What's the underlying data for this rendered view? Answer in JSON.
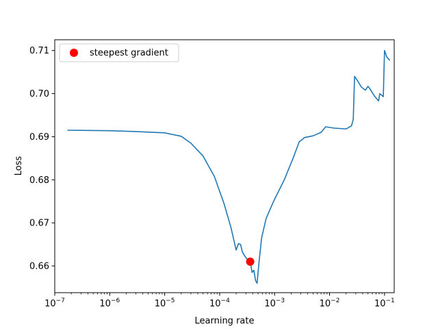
{
  "chart_data": {
    "type": "line",
    "xlabel": "Learning rate",
    "ylabel": "Loss",
    "xscale": "log",
    "xlim": [
      1e-07,
      0.15
    ],
    "ylim": [
      0.6538,
      0.7125
    ],
    "grid": false,
    "legend_position": "top-left",
    "x_ticks": [
      {
        "value": 1e-07,
        "base": "10",
        "exp": "−7"
      },
      {
        "value": 1e-06,
        "base": "10",
        "exp": "−6"
      },
      {
        "value": 1e-05,
        "base": "10",
        "exp": "−5"
      },
      {
        "value": 0.0001,
        "base": "10",
        "exp": "−4"
      },
      {
        "value": 0.001,
        "base": "10",
        "exp": "−3"
      },
      {
        "value": 0.01,
        "base": "10",
        "exp": "−2"
      },
      {
        "value": 0.1,
        "base": "10",
        "exp": "−1"
      }
    ],
    "y_ticks": [
      {
        "value": 0.66,
        "label": "0.66"
      },
      {
        "value": 0.67,
        "label": "0.67"
      },
      {
        "value": 0.68,
        "label": "0.68"
      },
      {
        "value": 0.69,
        "label": "0.69"
      },
      {
        "value": 0.7,
        "label": "0.70"
      },
      {
        "value": 0.71,
        "label": "0.71"
      }
    ],
    "series": [
      {
        "color": "#1f77b4",
        "points": [
          [
            1.7e-07,
            0.6915
          ],
          [
            1e-06,
            0.6914
          ],
          [
            3e-06,
            0.6912
          ],
          [
            1e-05,
            0.6909
          ],
          [
            2e-05,
            0.6901
          ],
          [
            3e-05,
            0.6885
          ],
          [
            5e-05,
            0.6855
          ],
          [
            8e-05,
            0.6808
          ],
          [
            0.00012,
            0.6745
          ],
          [
            0.00016,
            0.669
          ],
          [
            0.0002,
            0.6637
          ],
          [
            0.00022,
            0.6652
          ],
          [
            0.00024,
            0.665
          ],
          [
            0.00026,
            0.6632
          ],
          [
            0.00029,
            0.6622
          ],
          [
            0.00032,
            0.6615
          ],
          [
            0.00036,
            0.661
          ],
          [
            0.00039,
            0.6585
          ],
          [
            0.00042,
            0.659
          ],
          [
            0.00045,
            0.6566
          ],
          [
            0.00048,
            0.656
          ],
          [
            0.00052,
            0.6608
          ],
          [
            0.00058,
            0.6665
          ],
          [
            0.0007,
            0.671
          ],
          [
            0.00085,
            0.6735
          ],
          [
            0.001,
            0.6755
          ],
          [
            0.0015,
            0.68
          ],
          [
            0.0022,
            0.6852
          ],
          [
            0.0028,
            0.6888
          ],
          [
            0.0035,
            0.6898
          ],
          [
            0.005,
            0.6902
          ],
          [
            0.007,
            0.691
          ],
          [
            0.0085,
            0.6923
          ],
          [
            0.012,
            0.692
          ],
          [
            0.02,
            0.6918
          ],
          [
            0.025,
            0.6925
          ],
          [
            0.027,
            0.694
          ],
          [
            0.0285,
            0.704
          ],
          [
            0.033,
            0.7028
          ],
          [
            0.038,
            0.7015
          ],
          [
            0.045,
            0.7008
          ],
          [
            0.05,
            0.7017
          ],
          [
            0.055,
            0.701
          ],
          [
            0.065,
            0.6995
          ],
          [
            0.078,
            0.6983
          ],
          [
            0.082,
            0.7
          ],
          [
            0.095,
            0.6993
          ],
          [
            0.1,
            0.71
          ],
          [
            0.11,
            0.7085
          ],
          [
            0.125,
            0.7077
          ]
        ]
      }
    ],
    "marker": {
      "label": "steepest gradient",
      "x": 0.00036,
      "y": 0.661,
      "color": "#ff0000"
    }
  }
}
